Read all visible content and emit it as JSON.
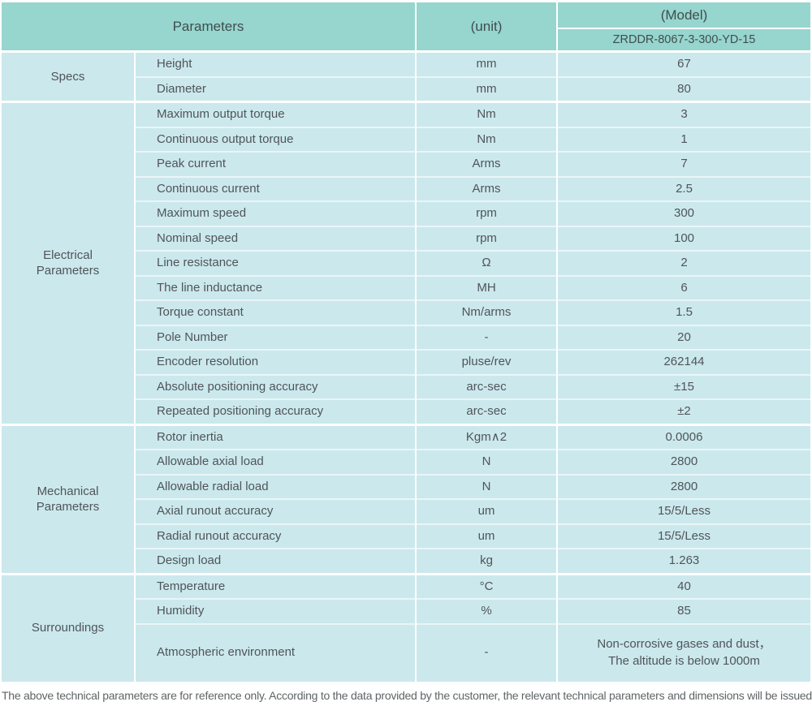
{
  "colors": {
    "header_bg": "#97d5cf",
    "row_bg": "#cbe8ed",
    "separator": "#eaf5f7",
    "page_bg": "#ffffff",
    "text": "#4f5558",
    "header_text": "#3f4e4c",
    "footer_text": "#606466"
  },
  "header": {
    "parameters_label": "Parameters",
    "unit_label": "(unit)",
    "model_label": "(Model)",
    "model_number": "ZRDDR-8067-3-300-YD-15"
  },
  "sections": [
    {
      "id": "specs",
      "label": "Specs",
      "rows": [
        {
          "parameter": "Height",
          "unit": "mm",
          "value": "67"
        },
        {
          "parameter": "Diameter",
          "unit": "mm",
          "value": "80"
        }
      ]
    },
    {
      "id": "electrical-parameters",
      "label": "Electrical\nParameters",
      "rows": [
        {
          "parameter": "Maximum output torque",
          "unit": "Nm",
          "value": "3"
        },
        {
          "parameter": "Continuous output torque",
          "unit": "Nm",
          "value": "1"
        },
        {
          "parameter": "Peak current",
          "unit": "Arms",
          "value": "7"
        },
        {
          "parameter": "Continuous current",
          "unit": "Arms",
          "value": "2.5"
        },
        {
          "parameter": "Maximum speed",
          "unit": "rpm",
          "value": "300"
        },
        {
          "parameter": "Nominal speed",
          "unit": "rpm",
          "value": "100"
        },
        {
          "parameter": "Line resistance",
          "unit": "Ω",
          "value": "2"
        },
        {
          "parameter": "The line inductance",
          "unit": "MH",
          "value": "6"
        },
        {
          "parameter": "Torque constant",
          "unit": "Nm/arms",
          "value": "1.5"
        },
        {
          "parameter": "Pole Number",
          "unit": "-",
          "value": "20"
        },
        {
          "parameter": "Encoder resolution",
          "unit": "pluse/rev",
          "value": "262144"
        },
        {
          "parameter": "Absolute positioning accuracy",
          "unit": "arc-sec",
          "value": "±15"
        },
        {
          "parameter": "Repeated positioning accuracy",
          "unit": "arc-sec",
          "value": "±2"
        }
      ]
    },
    {
      "id": "mechanical-parameters",
      "label": "Mechanical\nParameters",
      "rows": [
        {
          "parameter": "Rotor inertia",
          "unit": "Kgm∧2",
          "value": "0.0006"
        },
        {
          "parameter": "Allowable axial load",
          "unit": "N",
          "value": "2800"
        },
        {
          "parameter": "Allowable radial load",
          "unit": "N",
          "value": "2800"
        },
        {
          "parameter": "Axial runout accuracy",
          "unit": "um",
          "value": "15/5/Less"
        },
        {
          "parameter": "Radial runout accuracy",
          "unit": "um",
          "value": "15/5/Less"
        },
        {
          "parameter": "Design load",
          "unit": "kg",
          "value": "1.263"
        }
      ]
    },
    {
      "id": "surroundings",
      "label": "Surroundings",
      "rows": [
        {
          "parameter": "Temperature",
          "unit": "°C",
          "value": "40"
        },
        {
          "parameter": "Humidity",
          "unit": "%",
          "value": "85"
        },
        {
          "parameter": "Atmospheric environment",
          "unit": "-",
          "value": "Non-corrosive gases and dust，\nThe altitude is below 1000m",
          "tall": true
        }
      ]
    }
  ],
  "footer": {
    "note": "The above technical parameters are for reference only. According to the data provided by the customer, the relevant technical parameters and dimensions will be issued."
  }
}
